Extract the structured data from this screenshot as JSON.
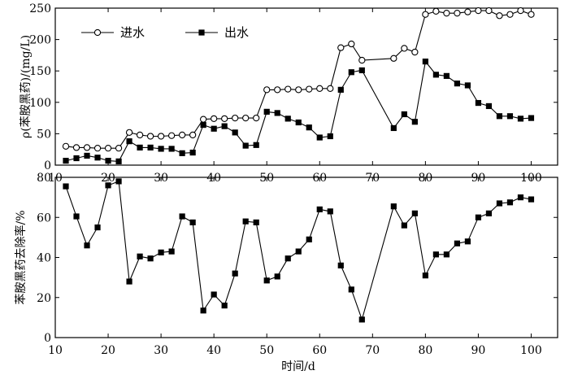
{
  "chart_data": [
    {
      "type": "line",
      "ylabel": "ρ(苯胺黑药)/(mg/L)",
      "xlabel": "",
      "xlim": [
        10,
        105
      ],
      "ylim": [
        0,
        250
      ],
      "xticks": [
        10,
        20,
        30,
        40,
        50,
        60,
        70,
        80,
        90,
        100
      ],
      "yticks": [
        0,
        50,
        100,
        150,
        200,
        250
      ],
      "grid": false,
      "legend": "top-left",
      "series": [
        {
          "name": "进水",
          "marker": "open-circle",
          "x": [
            12,
            14,
            16,
            18,
            20,
            22,
            24,
            26,
            28,
            30,
            32,
            34,
            36,
            38,
            40,
            42,
            44,
            46,
            48,
            50,
            52,
            54,
            56,
            58,
            60,
            62,
            64,
            66,
            68,
            74,
            76,
            78,
            80,
            82,
            84,
            86,
            88,
            90,
            92,
            94,
            96,
            98,
            100
          ],
          "y": [
            30,
            28,
            28,
            27,
            27,
            27,
            52,
            48,
            46,
            46,
            47,
            48,
            48,
            73,
            74,
            74,
            75,
            75,
            75,
            120,
            120,
            121,
            120,
            121,
            122,
            122,
            187,
            193,
            167,
            170,
            186,
            180,
            240,
            245,
            242,
            242,
            244,
            246,
            246,
            238,
            240,
            246,
            240
          ]
        },
        {
          "name": "出水",
          "marker": "filled-square",
          "x": [
            12,
            14,
            16,
            18,
            20,
            22,
            24,
            26,
            28,
            30,
            32,
            34,
            36,
            38,
            40,
            42,
            44,
            46,
            48,
            50,
            52,
            54,
            56,
            58,
            60,
            62,
            64,
            66,
            68,
            74,
            76,
            78,
            80,
            82,
            84,
            86,
            88,
            90,
            92,
            94,
            96,
            98,
            100
          ],
          "y": [
            7,
            11,
            15,
            12,
            7,
            6,
            38,
            28,
            28,
            26,
            26,
            19,
            20,
            64,
            58,
            62,
            52,
            31,
            32,
            85,
            83,
            74,
            68,
            60,
            44,
            46,
            120,
            148,
            151,
            59,
            81,
            69,
            165,
            144,
            142,
            130,
            127,
            99,
            94,
            78,
            78,
            74,
            75
          ]
        }
      ]
    },
    {
      "type": "line",
      "ylabel": "苯胺黑药去除率/%",
      "xlabel": "时间/d",
      "xlim": [
        10,
        105
      ],
      "ylim": [
        0,
        80
      ],
      "xticks": [
        10,
        20,
        30,
        40,
        50,
        60,
        70,
        80,
        90,
        100
      ],
      "yticks": [
        0,
        20,
        40,
        60,
        80
      ],
      "grid": false,
      "series": [
        {
          "marker": "filled-square",
          "x": [
            12,
            14,
            16,
            18,
            20,
            22,
            24,
            26,
            28,
            30,
            32,
            34,
            36,
            38,
            40,
            42,
            44,
            46,
            48,
            50,
            52,
            54,
            56,
            58,
            60,
            62,
            64,
            66,
            68,
            74,
            76,
            78,
            80,
            82,
            84,
            86,
            88,
            90,
            92,
            94,
            96,
            98,
            100
          ],
          "y": [
            75.5,
            60.5,
            46,
            55,
            76,
            78,
            28,
            40.5,
            39.5,
            42.5,
            43,
            60.5,
            57.5,
            13.5,
            21.5,
            16,
            32,
            58,
            57.5,
            28.5,
            30.5,
            39.5,
            43,
            49,
            64,
            63,
            36,
            24,
            9,
            65.5,
            56,
            62,
            31,
            41.5,
            41.5,
            47,
            48,
            60,
            62,
            67,
            67.5,
            70,
            69
          ]
        }
      ]
    }
  ]
}
